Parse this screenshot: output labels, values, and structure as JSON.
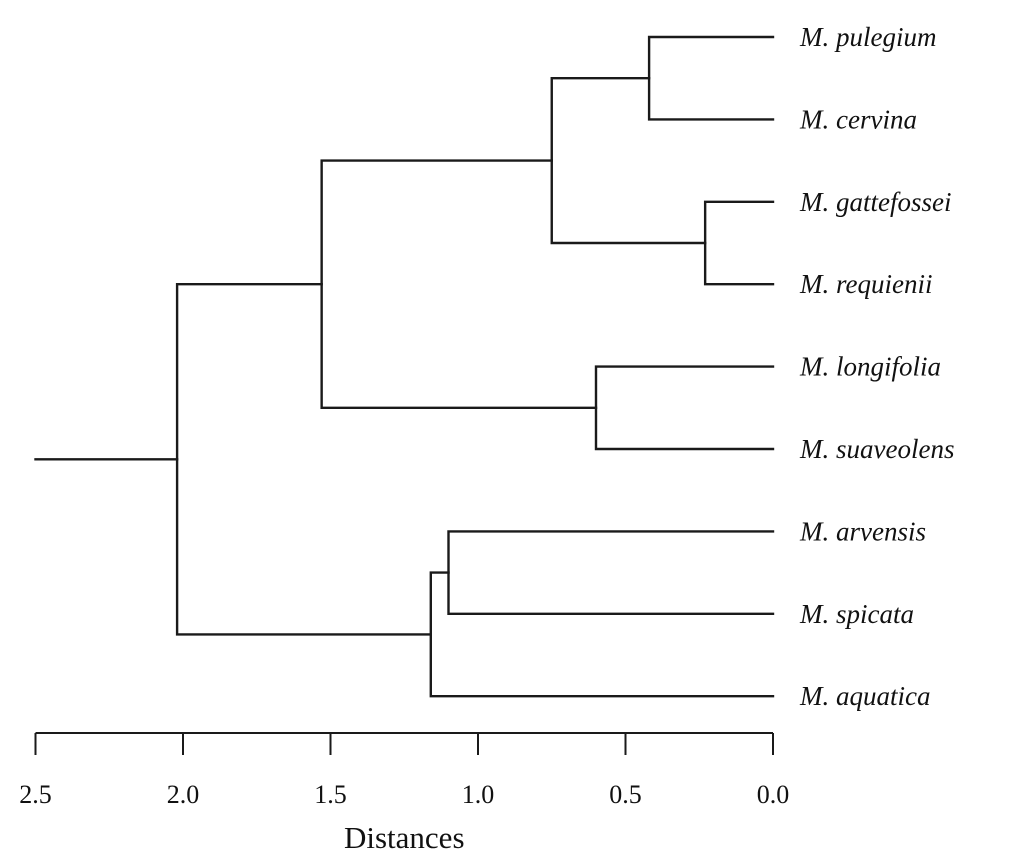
{
  "chart_data": {
    "type": "dendrogram",
    "leaves": [
      "M. pulegium",
      "M. cervina",
      "M. gattefossei",
      "M. requienii",
      "M. longifolia",
      "M. suaveolens",
      "M. arvensis",
      "M. spicata",
      "M. aquatica"
    ],
    "merges": [
      {
        "children": [
          "M. gattefossei",
          "M. requienii"
        ],
        "distance": 0.23
      },
      {
        "children": [
          "M. pulegium",
          "M. cervina"
        ],
        "distance": 0.42
      },
      {
        "children": [
          "M. longifolia",
          "M. suaveolens"
        ],
        "distance": 0.6
      },
      {
        "children": [
          "M. pulegium + M. cervina",
          "M. gattefossei + M. requienii"
        ],
        "distance": 0.75
      },
      {
        "children": [
          "M. arvensis",
          "M. spicata"
        ],
        "distance": 1.1
      },
      {
        "children": [
          "M. arvensis + M. spicata",
          "M. aquatica"
        ],
        "distance": 1.16
      },
      {
        "children": [
          "M. pulegium … M. requienii",
          "M. longifolia + M. suaveolens"
        ],
        "distance": 1.53
      },
      {
        "children": [
          "M. pulegium … M. suaveolens",
          "M. arvensis … M. aquatica"
        ],
        "distance": 2.02
      }
    ],
    "root_distance": 2.5,
    "x_axis": {
      "label": "Distances",
      "ticks": [
        "2.5",
        "2.0",
        "1.5",
        "1.0",
        "0.5",
        "0.0"
      ],
      "tick_values": [
        2.5,
        2.0,
        1.5,
        1.0,
        0.5,
        0.0
      ],
      "range": [
        2.5,
        0.0
      ],
      "reversed": true
    },
    "grid": false,
    "orientation": "horizontal, leaves on right"
  },
  "colors": {
    "line": "#1a1a1a",
    "text": "#111111",
    "background": "#ffffff"
  }
}
